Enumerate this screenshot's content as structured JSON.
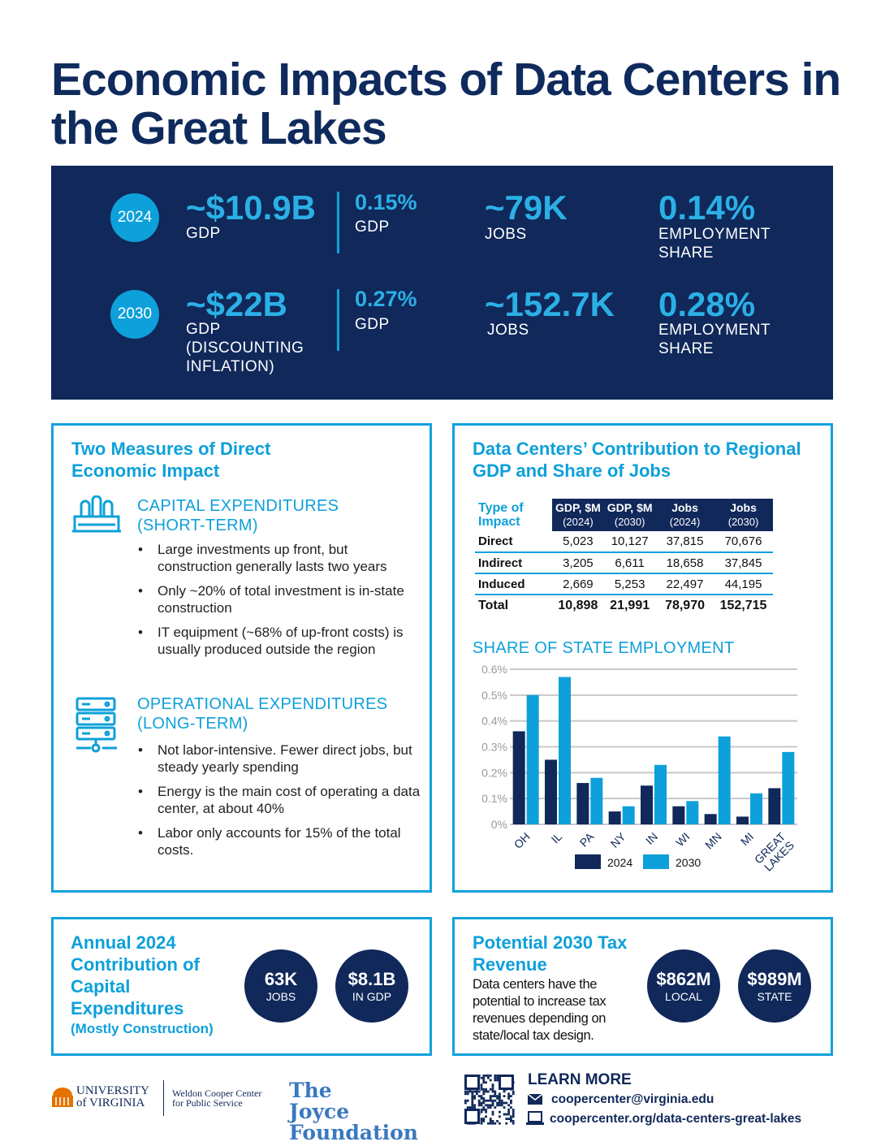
{
  "title": "Economic Impacts of Data Centers in the Great Lakes",
  "banner": {
    "rows": [
      {
        "year": "2024",
        "gdp_value": "~$10.9B",
        "gdp_label": "GDP",
        "gdp_share": "0.15%",
        "gdp_share_label": "GDP",
        "jobs": "~79K",
        "jobs_label": "JOBS",
        "emp_share": "0.14%",
        "emp_label": "EMPLOYMENT SHARE"
      },
      {
        "year": "2030",
        "gdp_value": "~$22B",
        "gdp_label": "GDP (DISCOUNTING INFLATION)",
        "gdp_share": "0.27%",
        "gdp_share_label": "GDP",
        "jobs": "~152.7K",
        "jobs_label": "JOBS",
        "emp_share": "0.28%",
        "emp_label": "EMPLOYMENT SHARE"
      }
    ]
  },
  "left_panel": {
    "title": "Two Measures of Direct Economic Impact",
    "capex": {
      "icon": "factory-icon",
      "title": "CAPITAL EXPENDITURES (SHORT-TERM)",
      "bullets": [
        "Large investments up front, but construction generally lasts two years",
        "Only ~20% of total investment is in-state construction",
        "IT equipment (~68% of up-front costs) is usually produced outside the region"
      ]
    },
    "opex": {
      "icon": "server-icon",
      "title": "OPERATIONAL EXPENDITURES (LONG-TERM)",
      "bullets": [
        "Not labor-intensive. Fewer direct jobs, but steady yearly spending",
        "Energy is the main cost of operating a data center, at about 40%",
        "Labor only accounts for 15% of the total costs."
      ]
    }
  },
  "right_panel": {
    "title": "Data Centers’ Contribution to Regional GDP and Share of Jobs",
    "table": {
      "corner": "Type of Impact",
      "headers": [
        [
          "GDP, $M",
          "(2024)"
        ],
        [
          "GDP, $M",
          "(2030)"
        ],
        [
          "Jobs",
          "(2024)"
        ],
        [
          "Jobs",
          "(2030)"
        ]
      ],
      "rows": [
        [
          "Direct",
          "5,023",
          "10,127",
          "37,815",
          "70,676"
        ],
        [
          "Indirect",
          "3,205",
          "6,611",
          "18,658",
          "37,845"
        ],
        [
          "Induced",
          "2,669",
          "5,253",
          "22,497",
          "44,195"
        ],
        [
          "Total",
          "10,898",
          "21,991",
          "78,970",
          "152,715"
        ]
      ]
    },
    "chart_title": "SHARE OF STATE EMPLOYMENT"
  },
  "chart_data": {
    "type": "bar",
    "title": "SHARE OF STATE EMPLOYMENT",
    "categories": [
      "OH",
      "IL",
      "PA",
      "NY",
      "IN",
      "WI",
      "MN",
      "MI",
      "GREAT LAKES"
    ],
    "series": [
      {
        "name": "2024",
        "color": "#10285a",
        "values": [
          0.36,
          0.25,
          0.16,
          0.05,
          0.15,
          0.07,
          0.04,
          0.03,
          0.14
        ]
      },
      {
        "name": "2030",
        "color": "#0ea0da",
        "values": [
          0.5,
          0.57,
          0.18,
          0.07,
          0.23,
          0.09,
          0.34,
          0.12,
          0.28
        ]
      }
    ],
    "yticks": [
      "0%",
      "0.1%",
      "0.2%",
      "0.3%",
      "0.4%",
      "0.5%",
      "0.6%"
    ],
    "ylim": [
      0,
      0.6
    ],
    "grid": true,
    "legend": "bottom"
  },
  "capex_box": {
    "title": "Annual 2024 Contribution of Capital Expenditures",
    "subtitle": "(Mostly Construction)",
    "stats": [
      {
        "value": "63K",
        "label": "JOBS"
      },
      {
        "value": "$8.1B",
        "label": "IN GDP"
      }
    ]
  },
  "tax_box": {
    "title": "Potential 2030 Tax Revenue",
    "text": "Data centers have the potential to increase tax revenues depending on state/local tax design.",
    "stats": [
      {
        "value": "$862M",
        "label": "LOCAL"
      },
      {
        "value": "$989M",
        "label": "STATE"
      }
    ]
  },
  "footer": {
    "uva": "UNIVERSITY of VIRGINIA",
    "weldon": "Weldon Cooper Center for Public Service",
    "joyce": "The Joyce Foundation",
    "learn_more": "LEARN MORE",
    "email": "coopercenter@virginia.edu",
    "url": "coopercenter.org/data-centers-great-lakes"
  }
}
